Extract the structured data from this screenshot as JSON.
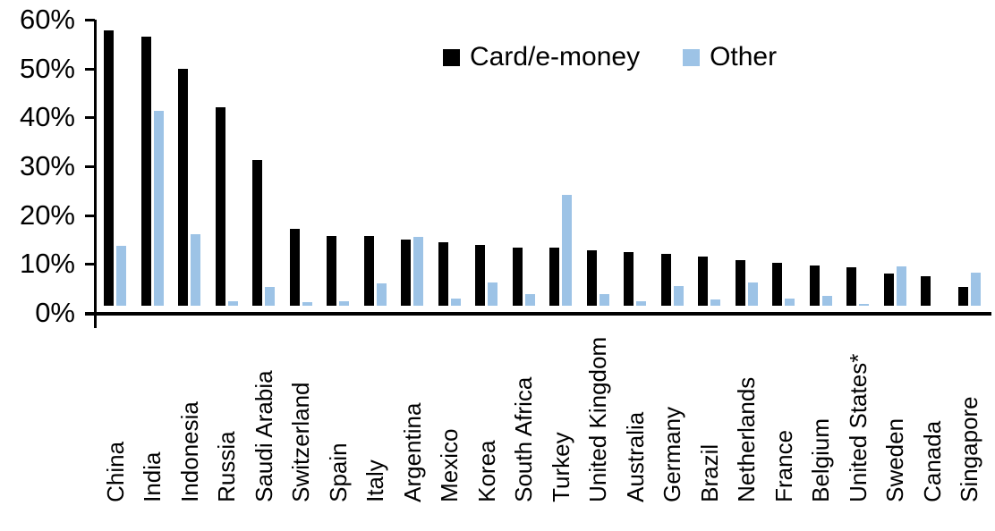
{
  "chart_data": {
    "type": "bar",
    "title": "",
    "xlabel": "",
    "ylabel": "",
    "ylim": [
      0,
      60
    ],
    "y_ticks": [
      "0%",
      "10%",
      "20%",
      "30%",
      "40%",
      "50%",
      "60%"
    ],
    "grid": false,
    "legend_position": "top-center",
    "categories": [
      "China",
      "India",
      "Indonesia",
      "Russia",
      "Saudi Arabia",
      "Switzerland",
      "Spain",
      "Italy",
      "Argentina",
      "Mexico",
      "Korea",
      "South Africa",
      "Turkey",
      "United Kingdom",
      "Australia",
      "Germany",
      "Brazil",
      "Netherlands",
      "France",
      "Belgium",
      "United States*",
      "Sweden",
      "Canada",
      "Singapore"
    ],
    "series": [
      {
        "name": "Card/e-money",
        "color": "#000000",
        "values": [
          56.4,
          55.1,
          48.4,
          40.6,
          29.9,
          15.7,
          14.3,
          14.2,
          13.6,
          13.0,
          12.4,
          11.8,
          11.8,
          11.3,
          11.0,
          10.6,
          10.0,
          9.3,
          8.8,
          8.2,
          7.9,
          6.5,
          6.0,
          3.9
        ]
      },
      {
        "name": "Other",
        "color": "#9DC3E6",
        "values": [
          12.3,
          39.8,
          14.6,
          1.0,
          3.9,
          0.8,
          1.0,
          4.6,
          14.0,
          1.4,
          4.7,
          2.4,
          22.7,
          2.4,
          1.0,
          4.0,
          1.2,
          4.8,
          1.5,
          2.1,
          0.3,
          8.1,
          0.0,
          6.7
        ]
      }
    ]
  }
}
